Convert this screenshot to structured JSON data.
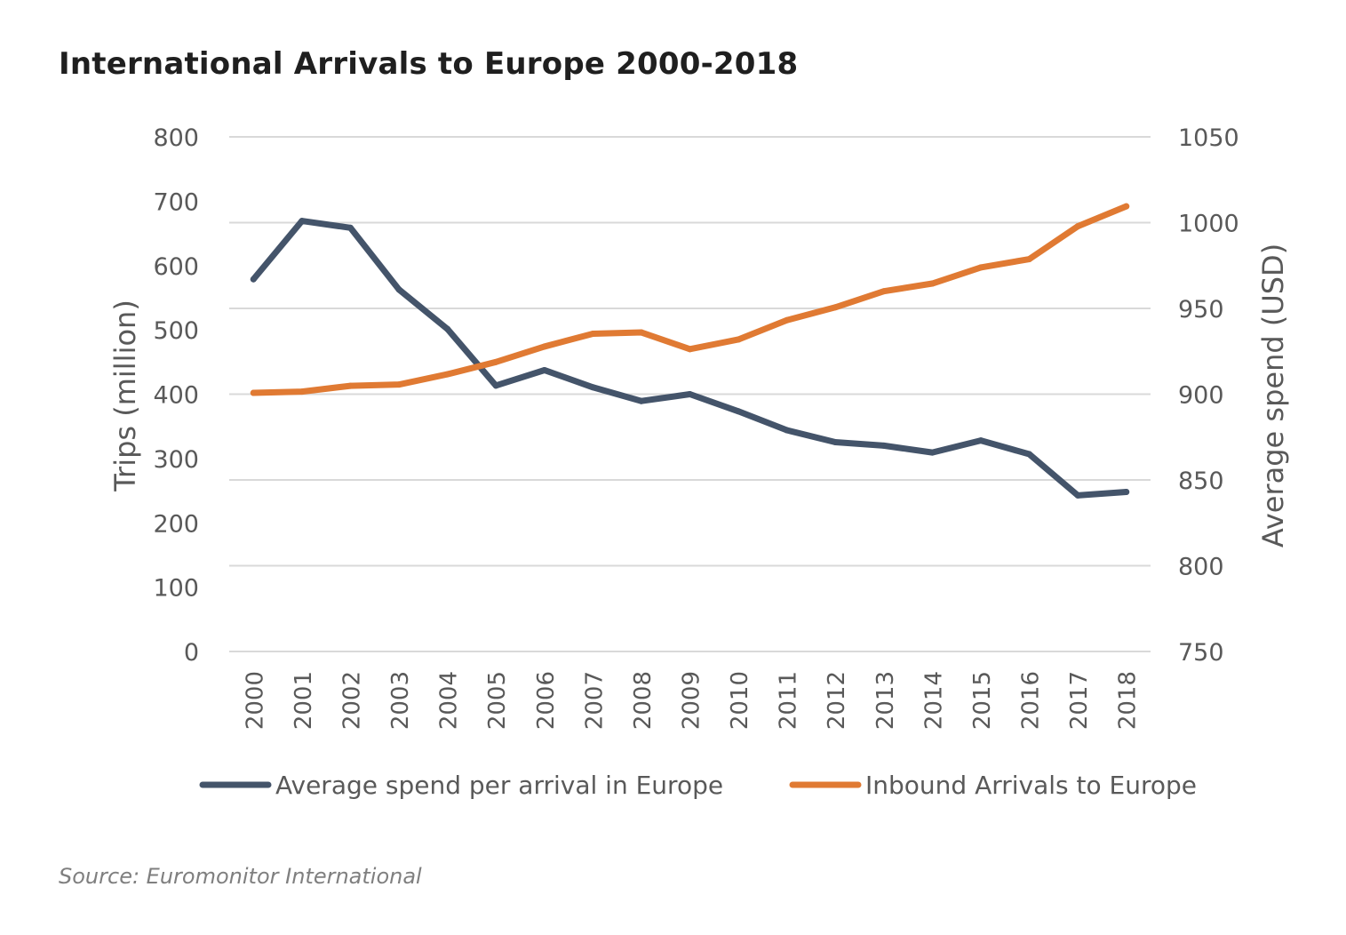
{
  "title": "International Arrivals to Europe 2000-2018",
  "source": "Source: Euromonitor International",
  "colors": {
    "spend": "#44546a",
    "arrivals": "#e07a33",
    "grid": "#d9d9d9",
    "axis_text": "#595959"
  },
  "chart_data": {
    "type": "line",
    "title": "International Arrivals to Europe 2000-2018",
    "x": [
      "2000",
      "2001",
      "2002",
      "2003",
      "2004",
      "2005",
      "2006",
      "2007",
      "2008",
      "2009",
      "2010",
      "2011",
      "2012",
      "2013",
      "2014",
      "2015",
      "2016",
      "2017",
      "2018"
    ],
    "ylabel_left": "Trips (million)",
    "ylabel_right": "Average spend (USD)",
    "ylim_left": [
      0,
      800
    ],
    "ylim_right": [
      750,
      1050
    ],
    "yticks_left": [
      "0",
      "100",
      "200",
      "300",
      "400",
      "500",
      "600",
      "700",
      "800"
    ],
    "yticks_right": [
      "750",
      "800",
      "850",
      "900",
      "950",
      "1000",
      "1050"
    ],
    "grid": true,
    "legend_position": "bottom",
    "series": [
      {
        "name": "Average spend per arrival in Europe",
        "axis": "right",
        "color": "#44546a",
        "values": [
          967,
          1001,
          997,
          961,
          938,
          905,
          914,
          904,
          896,
          900,
          890,
          879,
          872,
          870,
          866,
          873,
          865,
          841,
          843
        ]
      },
      {
        "name": "Inbound Arrivals to Europe",
        "axis": "left",
        "color": "#e07a33",
        "values": [
          402,
          404,
          413,
          415,
          431,
          450,
          474,
          494,
          496,
          470,
          485,
          515,
          535,
          560,
          572,
          597,
          610,
          661,
          692
        ]
      }
    ]
  }
}
